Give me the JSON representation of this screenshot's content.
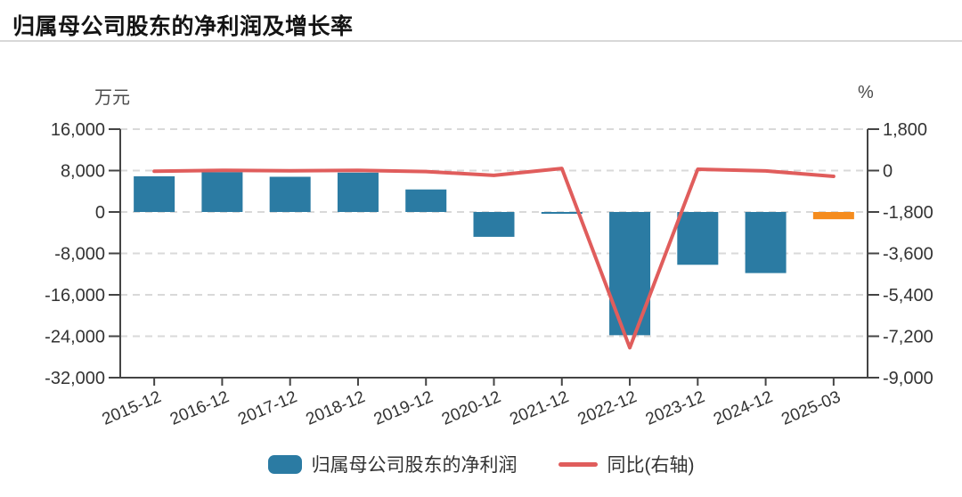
{
  "title": "归属母公司股东的净利润及增长率",
  "chart_data": {
    "type": "bar+line combo",
    "categories": [
      "2015-12",
      "2016-12",
      "2017-12",
      "2018-12",
      "2019-12",
      "2020-12",
      "2021-12",
      "2022-12",
      "2023-12",
      "2024-12",
      "2025-03"
    ],
    "series": [
      {
        "name": "归属母公司股东的净利润",
        "type": "bar",
        "axis": "left",
        "unit": "万元",
        "color": "#2b7ba3",
        "latest_period_color": "#f58c1e",
        "values": [
          6900,
          7700,
          6800,
          7600,
          4350,
          -4800,
          -300,
          -23800,
          -10200,
          -11800,
          -1400
        ]
      },
      {
        "name": "同比(右轴)",
        "type": "line",
        "axis": "right",
        "unit": "%",
        "color": "#e05d5c",
        "values": [
          -30,
          11.6,
          -11.7,
          11.8,
          -42.8,
          -210,
          93.8,
          -7700,
          57.1,
          -15.7,
          -250
        ]
      }
    ],
    "left_axis": {
      "unit": "万元",
      "ticks": [
        16000,
        8000,
        0,
        -8000,
        -16000,
        -24000,
        -32000
      ],
      "tick_labels": [
        "16,000",
        "8,000",
        "0",
        "-8,000",
        "-16,000",
        "-24,000",
        "-32,000"
      ]
    },
    "right_axis": {
      "unit": "%",
      "ticks": [
        1800,
        0,
        -1800,
        -3600,
        -5400,
        -7200,
        -9000
      ],
      "tick_labels": [
        "1,800",
        "0",
        "-1,800",
        "-3,600",
        "-5,400",
        "-7,200",
        "-9,000"
      ]
    },
    "grid": "dashed horizontal",
    "legend_position": "bottom",
    "x_label_rotation_deg": -23,
    "colors": {
      "axis": "#444444",
      "grid": "#d9d9d9",
      "tick_label": "#333333",
      "title": "#141414",
      "divider": "#d8d8d8",
      "background": "#ffffff"
    }
  }
}
